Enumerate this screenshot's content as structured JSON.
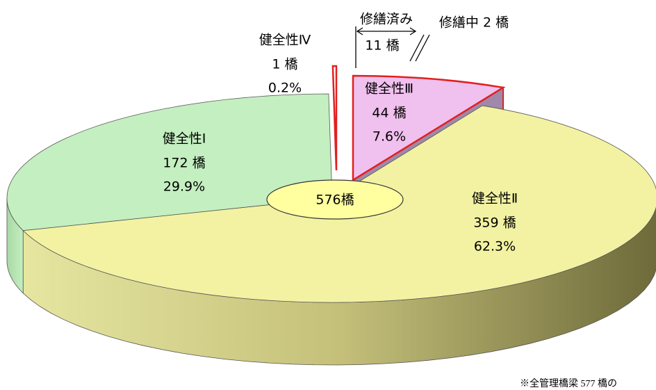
{
  "chart_data": {
    "type": "pie",
    "categories": [
      "健全性Ⅰ",
      "健全性Ⅱ",
      "健全性Ⅲ",
      "健全性Ⅳ"
    ],
    "values": [
      172,
      359,
      44,
      1
    ],
    "value_labels": [
      "172 橋",
      "359 橋",
      "44 橋",
      "1 橋"
    ],
    "percent_labels": [
      "29.9%",
      "62.3%",
      "7.6%",
      "0.2%"
    ],
    "colors": [
      "#c4efc0",
      "#f2f2a2",
      "#f0c0ee",
      "#ffffff"
    ],
    "total_label": "576橋",
    "annotations": [
      "修繕済み",
      "11 橋",
      "修繕中 2 橋"
    ],
    "footnote": "※全管理橋梁 577 橋の"
  }
}
